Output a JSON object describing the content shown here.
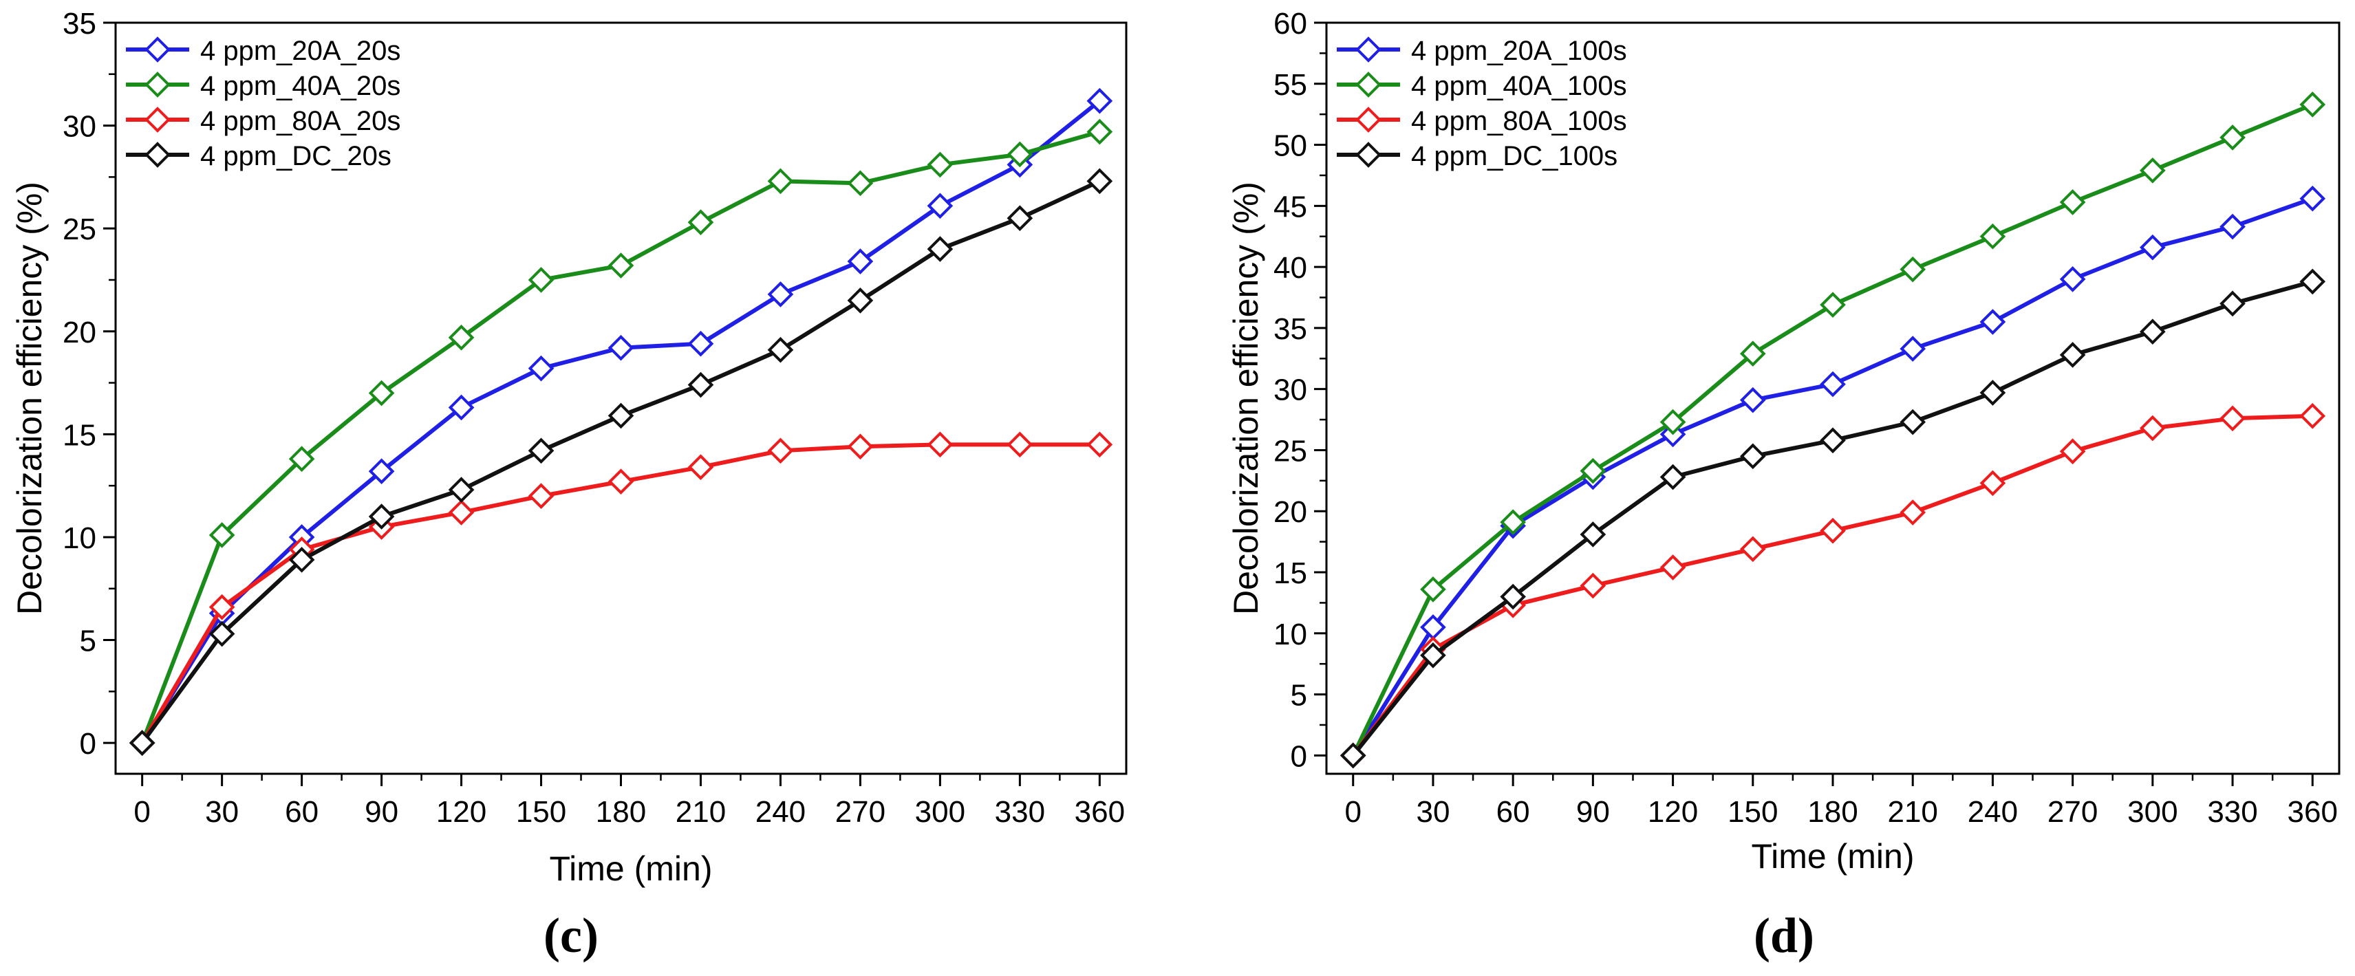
{
  "chart_data": [
    {
      "type": "line",
      "panel_label": "(c)",
      "xlabel": "Time (min)",
      "ylabel": "Decolorization efficiency (%)",
      "xlim": [
        -10,
        370
      ],
      "ylim": [
        -1.5,
        35
      ],
      "xticks": [
        0,
        30,
        60,
        90,
        120,
        150,
        180,
        210,
        240,
        270,
        300,
        330,
        360
      ],
      "yticks": [
        0,
        5,
        10,
        15,
        20,
        25,
        30,
        35
      ],
      "legend_position": "top-left",
      "x": [
        0,
        30,
        60,
        90,
        120,
        150,
        180,
        210,
        240,
        270,
        300,
        330,
        360
      ],
      "series": [
        {
          "name": "4 ppm_20A_20s",
          "color": "#1f1fe6",
          "values": [
            0,
            6.3,
            10.0,
            13.2,
            16.3,
            18.2,
            19.2,
            19.4,
            21.8,
            23.4,
            26.1,
            28.1,
            31.2
          ]
        },
        {
          "name": "4 ppm_40A_20s",
          "color": "#1a8c1a",
          "values": [
            0,
            10.1,
            13.8,
            17.0,
            19.7,
            22.5,
            23.2,
            25.3,
            27.3,
            27.2,
            28.1,
            28.6,
            29.7
          ]
        },
        {
          "name": "4 ppm_80A_20s",
          "color": "#ee1c1c",
          "values": [
            0,
            6.6,
            9.4,
            10.5,
            11.2,
            12.0,
            12.7,
            13.4,
            14.2,
            14.4,
            14.5,
            14.5,
            14.5
          ]
        },
        {
          "name": "4 ppm_DC_20s",
          "color": "#111111",
          "values": [
            0,
            5.3,
            8.9,
            11.0,
            12.3,
            14.2,
            15.9,
            17.4,
            19.1,
            21.5,
            24.0,
            25.5,
            27.3
          ]
        }
      ]
    },
    {
      "type": "line",
      "panel_label": "(d)",
      "xlabel": "Time (min)",
      "ylabel": "Decolorization efficiency (%)",
      "xlim": [
        -10,
        370
      ],
      "ylim": [
        -1.5,
        60
      ],
      "xticks": [
        0,
        30,
        60,
        90,
        120,
        150,
        180,
        210,
        240,
        270,
        300,
        330,
        360
      ],
      "yticks": [
        0,
        5,
        10,
        15,
        20,
        25,
        30,
        35,
        40,
        45,
        50,
        55,
        60
      ],
      "legend_position": "top-left",
      "x": [
        0,
        30,
        60,
        90,
        120,
        150,
        180,
        210,
        240,
        270,
        300,
        330,
        360
      ],
      "series": [
        {
          "name": "4 ppm_20A_100s",
          "color": "#1f1fe6",
          "values": [
            0,
            10.5,
            18.8,
            22.8,
            26.3,
            29.1,
            30.4,
            33.3,
            35.5,
            39.0,
            41.6,
            43.3,
            45.6
          ]
        },
        {
          "name": "4 ppm_40A_100s",
          "color": "#1a8c1a",
          "values": [
            0,
            13.6,
            19.1,
            23.3,
            27.3,
            32.9,
            36.9,
            39.8,
            42.5,
            45.3,
            47.9,
            50.6,
            53.3
          ]
        },
        {
          "name": "4 ppm_80A_100s",
          "color": "#ee1c1c",
          "values": [
            0,
            8.7,
            12.3,
            13.9,
            15.4,
            16.9,
            18.4,
            19.9,
            22.3,
            24.9,
            26.8,
            27.6,
            27.8
          ]
        },
        {
          "name": "4 ppm_DC_100s",
          "color": "#111111",
          "values": [
            0,
            8.2,
            13.0,
            18.1,
            22.8,
            24.5,
            25.8,
            27.3,
            29.7,
            32.8,
            34.7,
            37.0,
            38.8
          ]
        }
      ]
    }
  ]
}
